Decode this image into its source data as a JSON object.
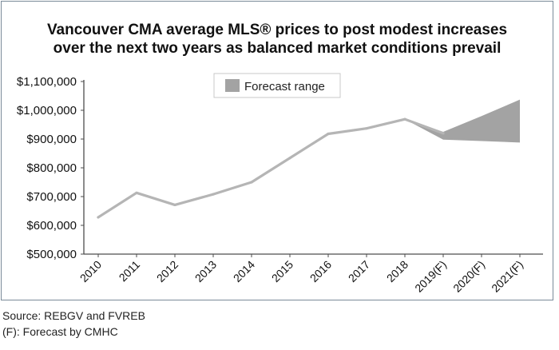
{
  "chart_data": {
    "type": "line",
    "title_line1": "Vancouver CMA average MLS® prices to post modest increases",
    "title_line2": "over the next two years as balanced market conditions prevail",
    "categories": [
      "2010",
      "2011",
      "2012",
      "2013",
      "2014",
      "2015",
      "2016",
      "2017",
      "2018",
      "2019(F)",
      "2020(F)",
      "2021(F)"
    ],
    "series": [
      {
        "values": [
          628000,
          713000,
          671000,
          708000,
          750000,
          834000,
          918000,
          937000,
          969000,
          920000,
          null,
          null
        ]
      }
    ],
    "forecast_range": {
      "label": "Forecast range",
      "categories": [
        "2018",
        "2019(F)",
        "2020(F)",
        "2021(F)"
      ],
      "upper": [
        969000,
        925000,
        980000,
        1037000
      ],
      "lower": [
        969000,
        898000,
        893000,
        888000
      ]
    },
    "y_ticks": [
      500000,
      600000,
      700000,
      800000,
      900000,
      1000000,
      1100000
    ],
    "y_tick_labels": [
      "$500,000",
      "$600,000",
      "$700,000",
      "$800,000",
      "$900,000",
      "$1,000,000",
      "$1,100,000"
    ],
    "ylim": [
      500000,
      1100000
    ],
    "xlabel": "",
    "ylabel": "",
    "grid": false,
    "legend_position": "top-center",
    "colors": {
      "line": "#b5b5b5",
      "forecast_fill": "#a3a3a3",
      "axis": "#4d4d4d"
    }
  },
  "notes": {
    "source": "Source: REBGV and FVREB",
    "forecast_note": "(F): Forecast by CMHC"
  }
}
